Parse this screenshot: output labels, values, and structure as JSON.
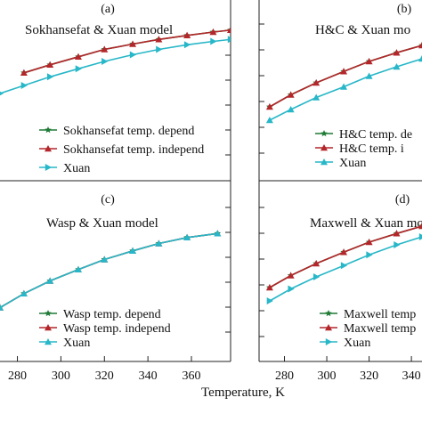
{
  "colors": {
    "green": "#1e7a35",
    "red": "#b3262a",
    "cyan": "#27b7c8",
    "axis": "#222222"
  },
  "x_axis_label": "Temperature, K",
  "chart_data": [
    {
      "type": "line",
      "panel_label": "(a)",
      "title": "Sokhansefat & Xuan model",
      "xlim": [
        272,
        378
      ],
      "ylim": [
        0,
        1
      ],
      "legend": "bottom-right",
      "series": [
        {
          "name": "Sokhansefat temp. depend",
          "color": "#1e7a35",
          "marker": "star",
          "x": [
            283,
            295,
            308,
            320,
            333,
            345,
            358,
            370,
            378
          ],
          "y": [
            0.655,
            0.715,
            0.775,
            0.83,
            0.87,
            0.905,
            0.935,
            0.96,
            0.975
          ]
        },
        {
          "name": "Sokhansefat temp. independ",
          "color": "#b3262a",
          "marker": "triangle",
          "x": [
            283,
            295,
            308,
            320,
            333,
            345,
            358,
            370,
            378
          ],
          "y": [
            0.655,
            0.715,
            0.775,
            0.83,
            0.87,
            0.905,
            0.935,
            0.96,
            0.975
          ]
        },
        {
          "name": "Xuan",
          "color": "#27b7c8",
          "marker": "triangle-right",
          "x": [
            272,
            283,
            295,
            308,
            320,
            333,
            345,
            358,
            370,
            378
          ],
          "y": [
            0.5,
            0.56,
            0.625,
            0.685,
            0.74,
            0.79,
            0.83,
            0.865,
            0.89,
            0.905
          ]
        }
      ]
    },
    {
      "type": "line",
      "panel_label": "(b)",
      "title": "H&C  & Xuan mo",
      "xlim": [
        268,
        345
      ],
      "ylim": [
        0,
        1
      ],
      "legend": "bottom-right",
      "series": [
        {
          "name": "H&C temp. de",
          "color": "#1e7a35",
          "marker": "star",
          "x": [
            273,
            283,
            295,
            308,
            320,
            333,
            345
          ],
          "y": [
            0.4,
            0.49,
            0.58,
            0.665,
            0.74,
            0.805,
            0.86
          ]
        },
        {
          "name": "H&C temp. i",
          "color": "#b3262a",
          "marker": "triangle",
          "x": [
            273,
            283,
            295,
            308,
            320,
            333,
            345
          ],
          "y": [
            0.4,
            0.49,
            0.58,
            0.665,
            0.74,
            0.805,
            0.86
          ]
        },
        {
          "name": "Xuan",
          "color": "#27b7c8",
          "marker": "triangle-up",
          "x": [
            273,
            283,
            295,
            308,
            320,
            333,
            345
          ],
          "y": [
            0.3,
            0.38,
            0.47,
            0.55,
            0.63,
            0.7,
            0.76
          ]
        }
      ]
    },
    {
      "type": "line",
      "panel_label": "(c)",
      "title": "Wasp & Xuan model",
      "xlim": [
        272,
        378
      ],
      "ylim": [
        0,
        1
      ],
      "legend": "bottom-right",
      "series": [
        {
          "name": "Wasp temp. depend",
          "color": "#1e7a35",
          "marker": "star",
          "x": [
            272,
            283,
            295,
            308,
            320,
            333,
            345,
            358,
            372
          ],
          "y": [
            0.25,
            0.355,
            0.45,
            0.535,
            0.61,
            0.675,
            0.73,
            0.775,
            0.805
          ]
        },
        {
          "name": "Wasp temp. independ",
          "color": "#b3262a",
          "marker": "triangle",
          "x": [
            272,
            283,
            295,
            308,
            320,
            333,
            345,
            358,
            372
          ],
          "y": [
            0.25,
            0.355,
            0.45,
            0.535,
            0.61,
            0.675,
            0.73,
            0.775,
            0.805
          ]
        },
        {
          "name": "Xuan",
          "color": "#27b7c8",
          "marker": "triangle-up",
          "x": [
            272,
            283,
            295,
            308,
            320,
            333,
            345,
            358,
            372
          ],
          "y": [
            0.25,
            0.355,
            0.45,
            0.535,
            0.61,
            0.675,
            0.73,
            0.775,
            0.805
          ]
        }
      ]
    },
    {
      "type": "line",
      "panel_label": "(d)",
      "title": "Maxwell & Xuan mo",
      "xlim": [
        268,
        345
      ],
      "ylim": [
        0,
        1
      ],
      "legend": "bottom-right",
      "series": [
        {
          "name": "Maxwell temp",
          "color": "#1e7a35",
          "marker": "star",
          "x": [
            273,
            283,
            295,
            308,
            320,
            333,
            345
          ],
          "y": [
            0.4,
            0.49,
            0.58,
            0.665,
            0.74,
            0.805,
            0.86
          ]
        },
        {
          "name": "Maxwell temp",
          "color": "#b3262a",
          "marker": "triangle",
          "x": [
            273,
            283,
            295,
            308,
            320,
            333,
            345
          ],
          "y": [
            0.4,
            0.49,
            0.58,
            0.665,
            0.74,
            0.805,
            0.86
          ]
        },
        {
          "name": "Xuan",
          "color": "#27b7c8",
          "marker": "triangle-right",
          "x": [
            273,
            283,
            295,
            308,
            320,
            333,
            345
          ],
          "y": [
            0.3,
            0.39,
            0.48,
            0.565,
            0.645,
            0.72,
            0.78
          ]
        }
      ]
    }
  ],
  "x_ticks_left": [
    280,
    300,
    320,
    340,
    360
  ],
  "x_ticks_right": [
    280,
    300,
    320,
    340
  ]
}
